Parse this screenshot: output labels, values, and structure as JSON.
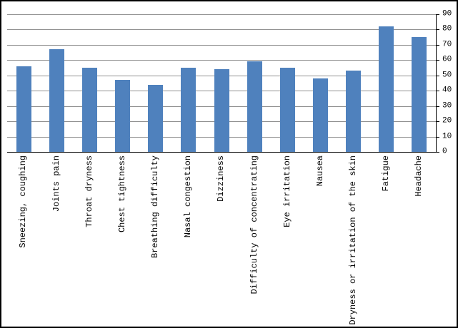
{
  "chart_data": {
    "type": "bar",
    "title": "",
    "categories": [
      "Sneezing, coughing",
      "Joints pain",
      "Throat dryness",
      "Chest tightness",
      "Breathing difficulty",
      "Nasal congestion",
      "Dizziness",
      "Difficulty of concentrating",
      "Eye irritation",
      "Nausea",
      "Dryness or irritation of the skin",
      "Fatigue",
      "Headache"
    ],
    "values": [
      56,
      67,
      55,
      47,
      44,
      55,
      54,
      59,
      55,
      48,
      53,
      82,
      75
    ],
    "ylim": [
      0,
      90
    ],
    "yticks": [
      0,
      10,
      20,
      30,
      40,
      50,
      60,
      70,
      80,
      90
    ],
    "yaxis_side": "right",
    "grid": true,
    "legend": false,
    "xlabel": "",
    "ylabel": "",
    "bar_color": "#4F81BD"
  }
}
